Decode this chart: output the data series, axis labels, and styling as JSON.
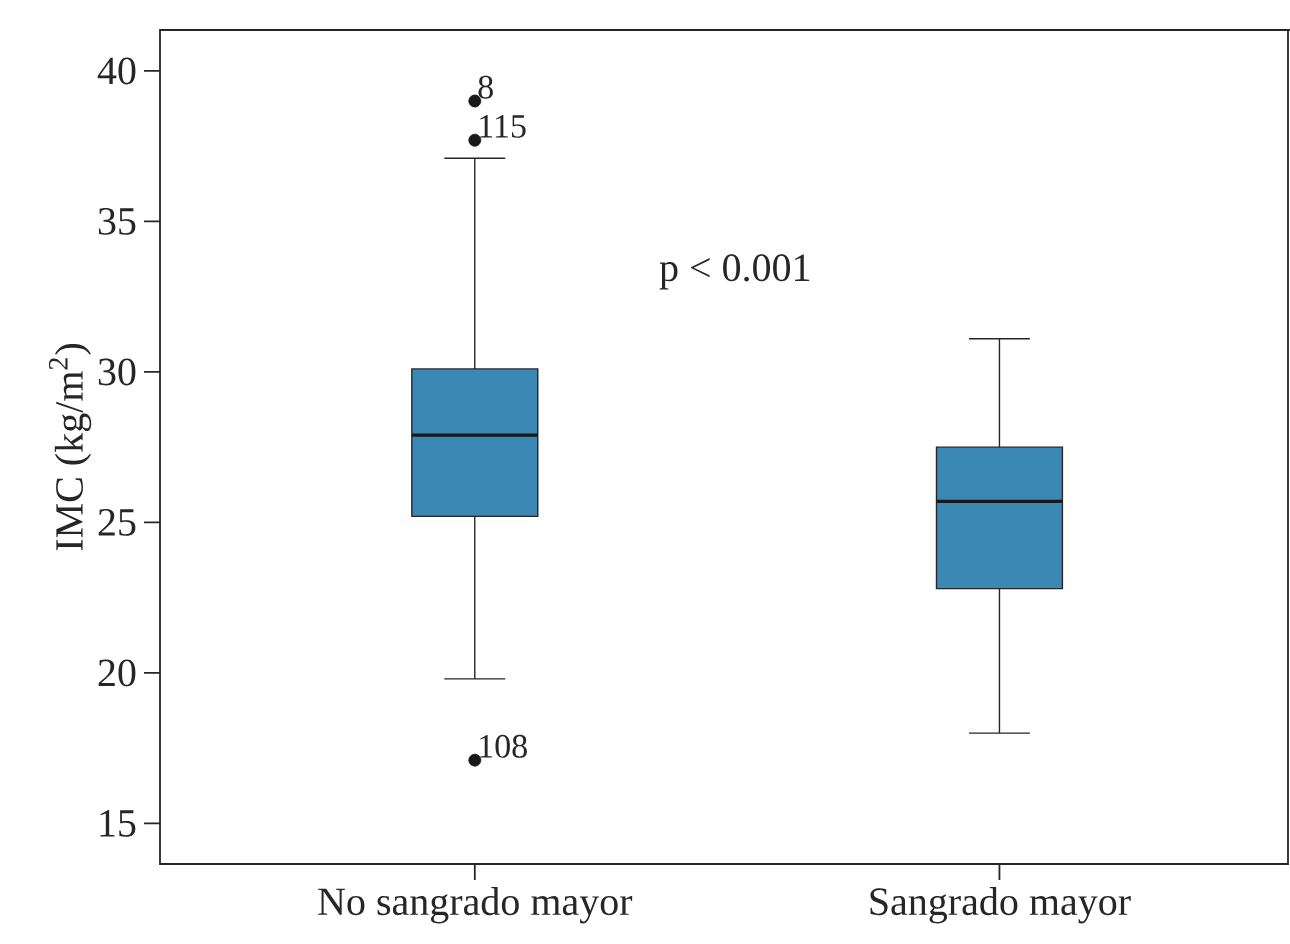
{
  "chart_data": {
    "type": "box",
    "ylabel": "IMC (kg/m$^{2}$)",
    "categories": [
      "No sangrado mayor",
      "Sangrado mayor"
    ],
    "color": "#3b88b5",
    "boxes": [
      {
        "low": 19.8,
        "q1": 25.2,
        "median": 27.9,
        "q3": 30.1,
        "high": 37.1,
        "outliers": [
          39.0,
          37.7,
          17.1
        ]
      },
      {
        "low": 18.0,
        "q1": 22.8,
        "median": 25.7,
        "q3": 27.5,
        "high": 31.1
      }
    ],
    "ylim": [
      13.65,
      41.36
    ],
    "yticks": [
      15,
      20,
      25,
      30,
      35,
      40
    ],
    "annotations": [
      "p < 0.001",
      "8",
      "115",
      "108"
    ]
  }
}
